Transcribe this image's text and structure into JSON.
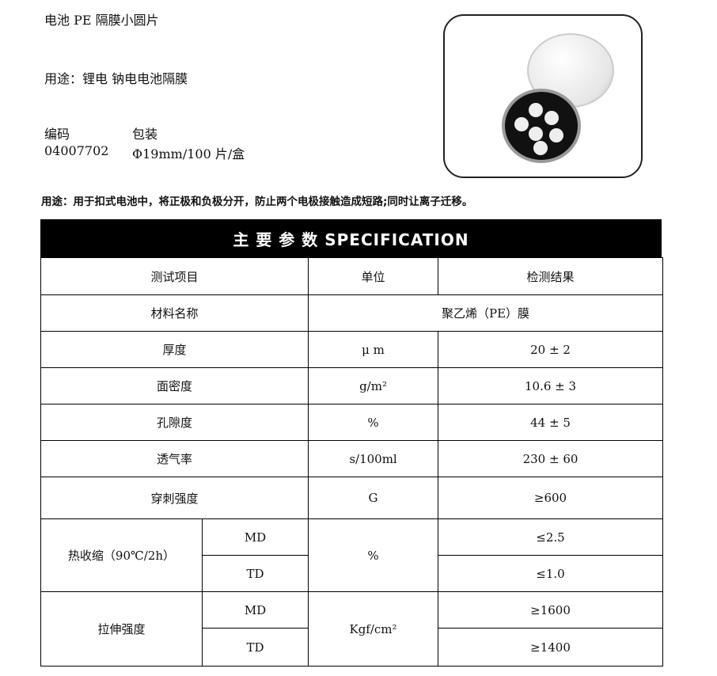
{
  "title": "电池 PE 隔膜小圆片",
  "usage_line": "用途：锂电  钠电电池隔膜",
  "code_label": "编码",
  "code_value": "04007702",
  "package_label": "包装",
  "package_value": "Φ19mm/100 片/盒",
  "description": "用途：用于扣式电池中，将正极和负极分开，防止两个电极接触造成短路;同时让离子迁移。",
  "spec_header": "主 要 参 数 SPECIFICATION",
  "table": {
    "headers": [
      "测试项目",
      "单位",
      "检测结果"
    ],
    "material": {
      "label": "材料名称",
      "value": "聚乙烯（PE）膜"
    },
    "rows": [
      {
        "item": "厚度",
        "unit": "μ m",
        "result": "20 ± 2"
      },
      {
        "item": "面密度",
        "unit": "g/m²",
        "result": "10.6 ± 3"
      },
      {
        "item": "孔隙度",
        "unit": "%",
        "result": "44 ± 5"
      },
      {
        "item": "透气率",
        "unit": "s/100ml",
        "result": "230 ± 60"
      },
      {
        "item": "穿刺强度",
        "unit": "G",
        "result": "≥600"
      }
    ],
    "shrink": {
      "item": "热收缩（90℃/2h）",
      "unit": "%",
      "md_label": "MD",
      "md": "≤2.5",
      "td_label": "TD",
      "td": "≤1.0"
    },
    "tensile": {
      "item": "拉伸强度",
      "unit": "Kgf/cm²",
      "md_label": "MD",
      "md": "≥1600",
      "td_label": "TD",
      "td": "≥1400"
    }
  }
}
